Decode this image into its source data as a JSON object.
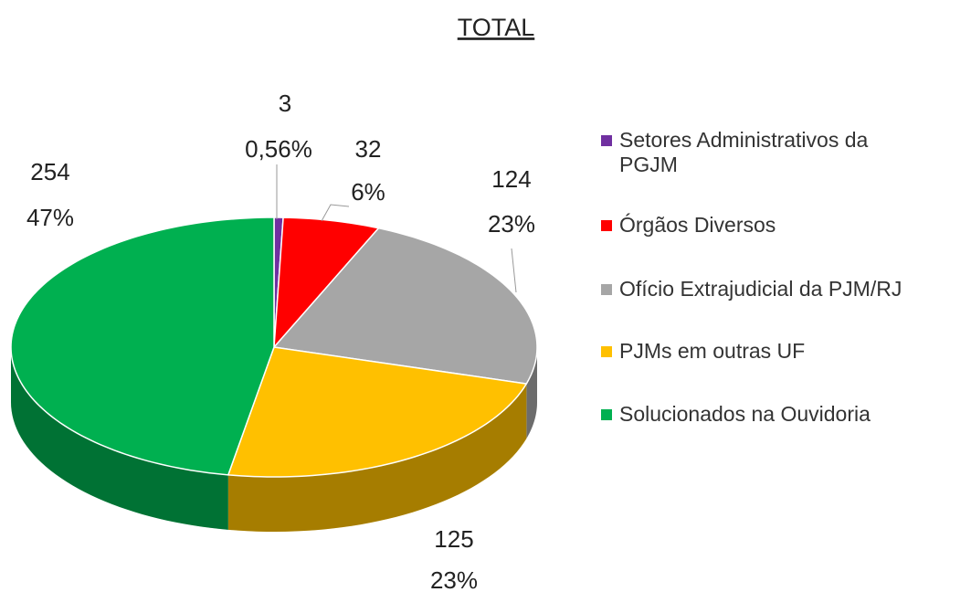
{
  "chart_data": {
    "type": "pie",
    "title": "TOTAL",
    "categories": [
      "Setores Administrativos da PGJM",
      "Órgãos Diversos",
      "Ofício Extrajudicial da PJM/RJ",
      "PJMs em outras UF",
      "Solucionados na Ouvidoria"
    ],
    "values": [
      3,
      32,
      124,
      125,
      254
    ],
    "percent_labels": [
      "0,56%",
      "6%",
      "23%",
      "23%",
      "47%"
    ],
    "colors": [
      "#7030a0",
      "#ff0000",
      "#a6a6a6",
      "#ffc000",
      "#00b050"
    ],
    "legend": "right"
  }
}
